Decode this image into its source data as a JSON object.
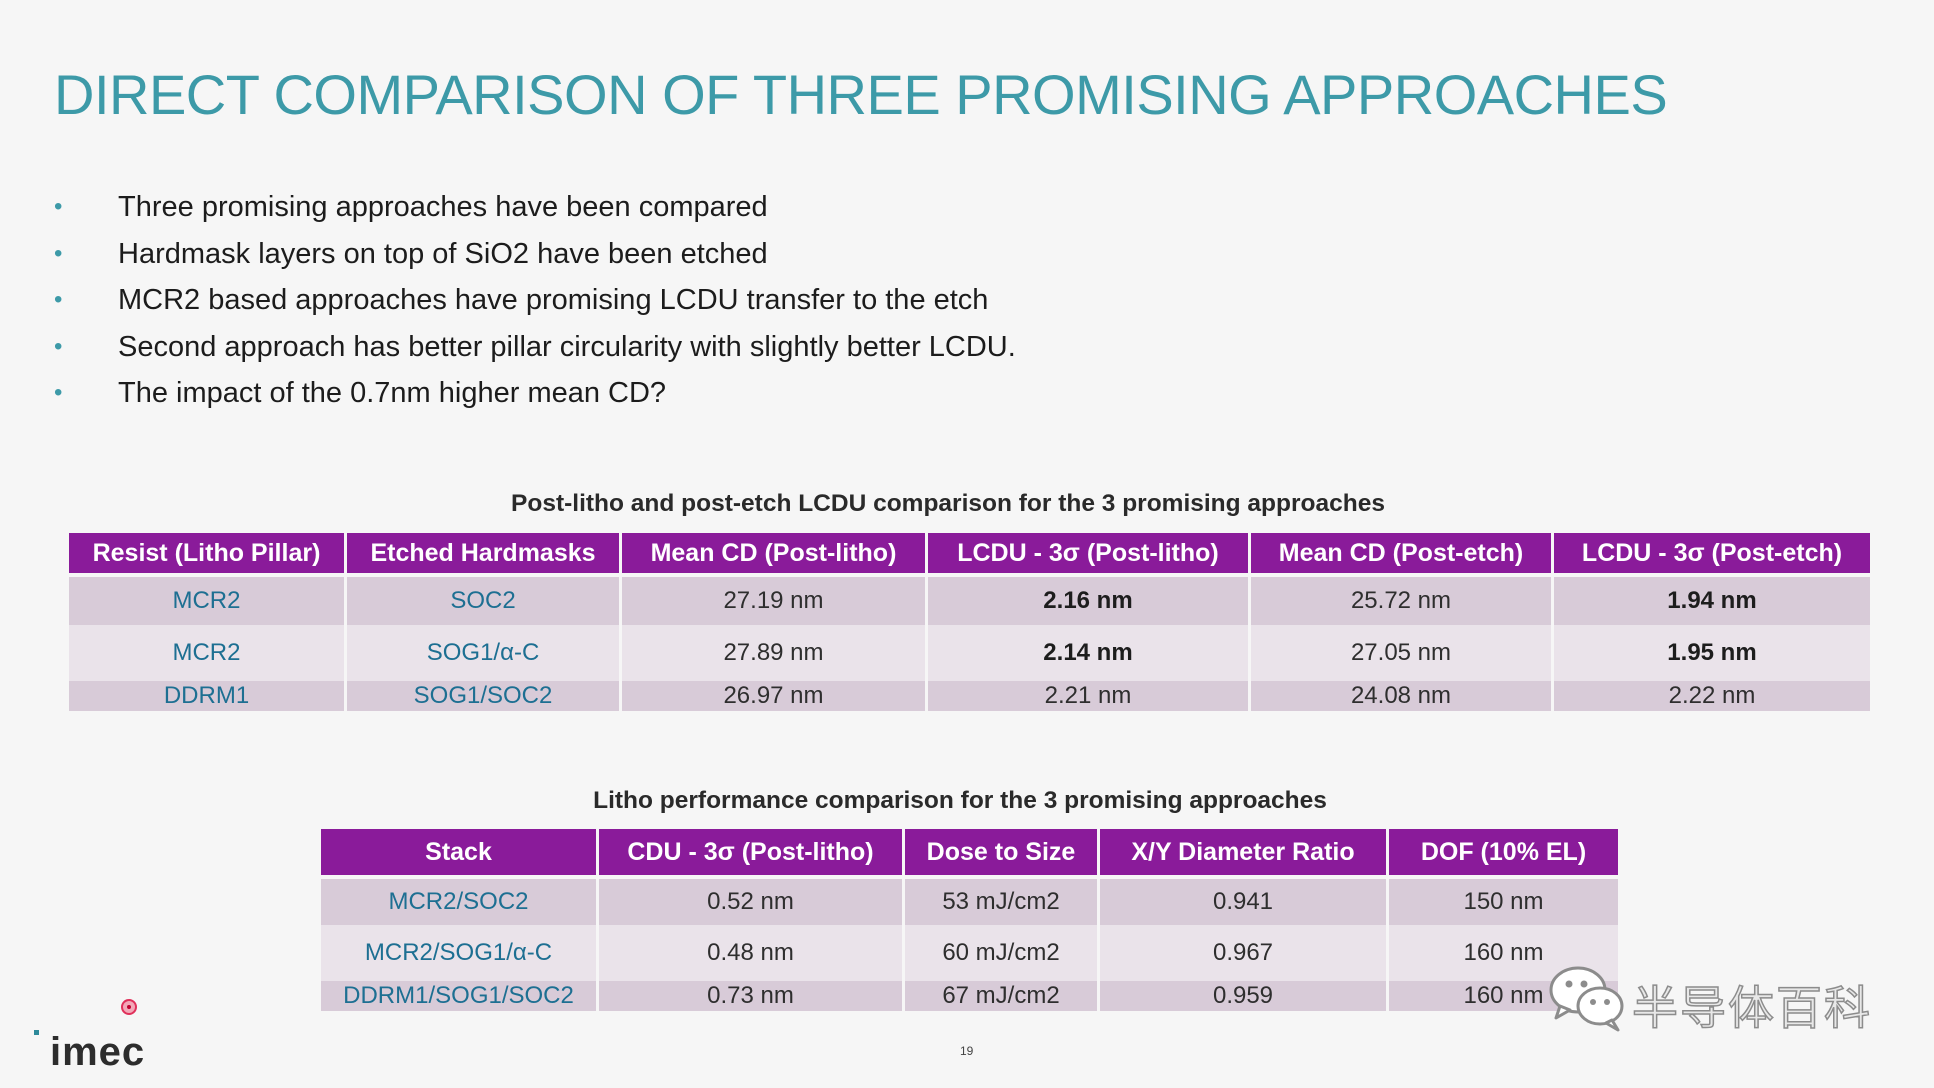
{
  "title": "DIRECT COMPARISON OF THREE PROMISING APPROACHES",
  "bullets": [
    "Three promising approaches have been compared",
    "Hardmask layers on top of SiO2 have been etched",
    "MCR2 based approaches have promising LCDU transfer to the etch",
    "Second approach has better pillar circularity with slightly better LCDU.",
    "The impact of the 0.7nm higher mean CD?"
  ],
  "bullet_glyph": "•",
  "table1": {
    "caption": "Post-litho and post-etch LCDU comparison for the 3 promising approaches",
    "headers": [
      "Resist (Litho Pillar)",
      "Etched Hardmasks",
      "Mean CD (Post-litho)",
      "LCDU - 3σ (Post-litho)",
      "Mean CD (Post-etch)",
      "LCDU - 3σ (Post-etch)"
    ],
    "rows": [
      [
        "MCR2",
        "SOC2",
        "27.19 nm",
        "2.16 nm",
        "25.72 nm",
        "1.94 nm"
      ],
      [
        "MCR2",
        "SOG1/α-C",
        "27.89 nm",
        "2.14 nm",
        "27.05 nm",
        "1.95 nm"
      ],
      [
        "DDRM1",
        "SOG1/SOC2",
        "26.97 nm",
        "2.21 nm",
        "24.08 nm",
        "2.22 nm"
      ]
    ]
  },
  "table2": {
    "caption": "Litho performance comparison for the 3 promising approaches",
    "headers": [
      "Stack",
      "CDU - 3σ (Post-litho)",
      "Dose to Size",
      "X/Y Diameter Ratio",
      "DOF (10% EL)"
    ],
    "rows": [
      [
        "MCR2/SOC2",
        "0.52 nm",
        "53 mJ/cm2",
        "0.941",
        "150 nm"
      ],
      [
        "MCR2/SOG1/α-C",
        "0.48 nm",
        "60 mJ/cm2",
        "0.967",
        "160 nm"
      ],
      [
        "DDRM1/SOG1/SOC2",
        "0.73 nm",
        "67 mJ/cm2",
        "0.959",
        "160 nm"
      ]
    ]
  },
  "logo": "imec",
  "page_number": "19",
  "watermark": "半导体百科",
  "colors": {
    "title": "#3d9aa8",
    "header_bg": "#8a1b9a",
    "row_odd": "#d8cbd8",
    "row_even": "#eae3ea",
    "name_text": "#1d6f92"
  }
}
